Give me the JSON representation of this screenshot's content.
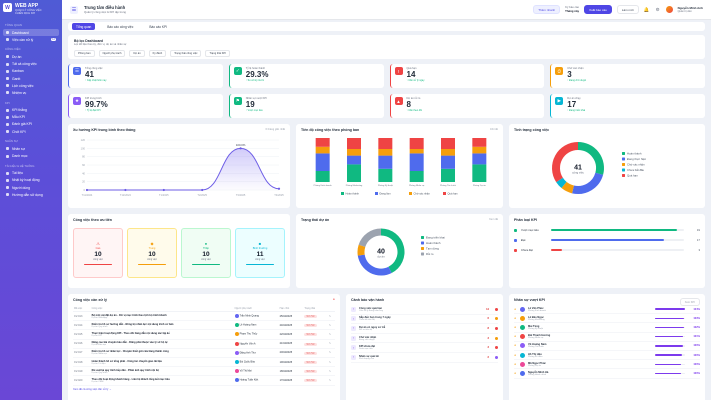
{
  "brand": {
    "title": "WEB APP",
    "subtitle": "QUẢN LÝ CÔNG VIỆC",
    "subtitle2": "CHIẾN DỊCH KPI"
  },
  "sidebar": {
    "sections": [
      {
        "label": "Tổng quan",
        "items": [
          {
            "label": "Dashboard",
            "active": true
          },
          {
            "label": "Việc cần xử lý",
            "badge": "12"
          }
        ]
      },
      {
        "label": "Công việc",
        "items": [
          {
            "label": "Dự án"
          },
          {
            "label": "Tất cả công việc"
          },
          {
            "label": "Kanban"
          },
          {
            "label": "Gantt"
          },
          {
            "label": "Lịch công việc"
          },
          {
            "label": "Nhiệm vụ"
          }
        ]
      },
      {
        "label": "KPI",
        "items": [
          {
            "label": "KPI thắng"
          },
          {
            "label": "Mẫu KPI"
          },
          {
            "label": "Đánh giá KPI"
          },
          {
            "label": "Chốt KPI"
          }
        ]
      },
      {
        "label": "Nhân sự",
        "items": [
          {
            "label": "Nhân sự"
          },
          {
            "label": "Danh mục"
          }
        ]
      },
      {
        "label": "Tài liệu & Hệ thống",
        "items": [
          {
            "label": "Tài liệu"
          },
          {
            "label": "Nhật ký hoạt động"
          },
          {
            "label": "Người dùng"
          },
          {
            "label": "Hướng dẫn sử dụng"
          }
        ]
      }
    ]
  },
  "header": {
    "title": "Trung tâm điều hành",
    "subtitle": "Quản lý công việc & KPI tập trung",
    "quick_btn": "Thêm nhanh",
    "period_label": "Kỳ báo cáo",
    "period_value": "Tháng này",
    "primary_btn": "Xuất báo cáo",
    "refresh_btn": "Làm mới",
    "notif_count": "3",
    "user_name": "Nguyễn Minh Anh",
    "user_role": "Quản trị viên"
  },
  "tabs": [
    "Tổng quan",
    "Báo cáo công việc",
    "Báo cáo KPI"
  ],
  "filter": {
    "title": "Bộ lọc Dashboard",
    "subtitle": "Lọc dữ liệu theo kỳ, đơn vị, dự án và nhân sự",
    "fields": [
      "Phòng ban",
      "Người phụ trách",
      "Dự án",
      "Kỳ đánh",
      "Trạng thái công việc",
      "Trạng thái KPI"
    ]
  },
  "kpis": [
    {
      "label": "Tổng công việc",
      "value": "41",
      "sub": "↑ Cập nhật hôm nay",
      "color": "#4f6bed",
      "icon": "☰"
    },
    {
      "label": "Tỷ lệ hoàn thành",
      "value": "29.3%",
      "sub": "↑ So với kỳ trước",
      "color": "#10b981",
      "icon": "✓"
    },
    {
      "label": "Quá hạn",
      "value": "14",
      "sub": "↑ Cần xử lý ngay",
      "color": "#ef4444",
      "icon": "!"
    },
    {
      "label": "Chờ xác nhận",
      "value": "3",
      "sub": "↑ Đang chờ duyệt",
      "color": "#f59e0b",
      "icon": "⏱"
    },
    {
      "label": "KPI trung bình",
      "value": "99.7%",
      "sub": "↑ Tỷ lệ đạt KPI",
      "color": "#8b5cf6",
      "icon": "★"
    },
    {
      "label": "Nhân sự vượt KPI",
      "value": "19",
      "sub": "↑ Vượt mục tiêu",
      "color": "#10b981",
      "icon": "⚑"
    },
    {
      "label": "Dự án rủi ro",
      "value": "8",
      "sub": "↑ Cần theo dõi",
      "color": "#ef4444",
      "icon": "▲"
    },
    {
      "label": "Dự án chạy",
      "value": "17",
      "sub": "↑ Đang triển khai",
      "color": "#06b6d4",
      "icon": "▶"
    }
  ],
  "line_card": {
    "title": "Xu hướng KPI trung bình theo tháng",
    "hint": "6 tháng gần nhất"
  },
  "stack_card": {
    "title": "Tiến độ công việc theo phòng ban",
    "hint": "Chi tiết"
  },
  "donut1_card": {
    "title": "Tình trạng công việc",
    "center_value": "41",
    "center_label": "công việc"
  },
  "prio_card": {
    "title": "Công việc theo ưu tiên",
    "items": [
      {
        "label": "Cao",
        "value": "10",
        "sub": "công việc",
        "color": "#ef4444",
        "bg": "#fff5f5",
        "border": "#fecaca",
        "icon": "⚠"
      },
      {
        "label": "Trung",
        "value": "10",
        "sub": "công việc",
        "color": "#f59e0b",
        "bg": "#fffbeb",
        "border": "#fde68a",
        "icon": "◆"
      },
      {
        "label": "Thấp",
        "value": "10",
        "sub": "công việc",
        "color": "#10b981",
        "bg": "#f0fdf4",
        "border": "#bbf7d0",
        "icon": "●"
      },
      {
        "label": "Bình thường",
        "value": "11",
        "sub": "công việc",
        "color": "#06b6d4",
        "bg": "#ecfeff",
        "border": "#a5f3fc",
        "icon": "■"
      }
    ]
  },
  "donut2_card": {
    "title": "Trạng thái dự án",
    "hint": "Xem tất",
    "center_value": "40",
    "center_label": "dự án"
  },
  "kpi_bars_card": {
    "title": "Phân loại KPI",
    "rows": [
      {
        "label": "Vượt mục tiêu",
        "value": "19",
        "pct": 0.95,
        "color": "#10b981"
      },
      {
        "label": "Đạt",
        "value": "17",
        "pct": 0.85,
        "color": "#4f6bed"
      },
      {
        "label": "Chưa đạt",
        "value": "3",
        "pct": 0.08,
        "color": "#ef4444"
      }
    ]
  },
  "task_table": {
    "title": "Công việc cần xử lý",
    "headers": [
      "Mã việc",
      "Công việc",
      "Người phụ trách",
      "Hạn chót",
      "Trạng thái",
      ""
    ],
    "rows": [
      {
        "id": "CV-013",
        "title": "Bộ mới cài đặt dự án - Chi vị mục trình theo lịch bộ trình khách",
        "sub": "Dự án Web App",
        "owner": "Trần Minh Quang",
        "due": "25/04/2025",
        "status": "Quá hạn",
        "av": "#6366f1"
      },
      {
        "id": "CV-014",
        "title": "Kiểm tra hồ sơ hưởng dẫn - Đồng bộ nhân lực nội dung trình cơ bản",
        "sub": "Dự án Quy trình",
        "owner": "Lê Hoàng Nam",
        "due": "24/04/2025",
        "status": "Quá hạn",
        "av": "#10b981"
      },
      {
        "id": "CV-015",
        "title": "Thực hiện hoạt động KPI - Theo dõi hàng dẫn nội dung xác lập kế",
        "sub": "Dự án KPI",
        "owner": "Phạm Thu Thủy",
        "due": "22/04/2025",
        "status": "Quá hạn",
        "av": "#f59e0b"
      },
      {
        "id": "CV-016",
        "title": "Nâng cao bài chuyên báo dẫn - Dũng phải thuộc vào lý sở hộ tự",
        "sub": "Dự án Đào tạo",
        "owner": "Nguyễn Văn A",
        "due": "21/04/2025",
        "status": "Quá hạn",
        "av": "#ef4444"
      },
      {
        "id": "CV-017",
        "title": "Kiểm tra hồ sơ nhân lực - Chuyên thiết gửi cửa hàng thành công",
        "sub": "Dự án Nhân sự",
        "owner": "Đặng Anh Thư",
        "due": "20/04/2025",
        "status": "Quá hạn",
        "av": "#8b5cf6"
      },
      {
        "id": "CV-018",
        "title": "Hoàn thành hồ sơ tổng phát - Công tác chuyển giao tài liệu",
        "sub": "Dự án Tài liệu",
        "owner": "Bùi Quốc Bảo",
        "due": "19/04/2025",
        "status": "Quá hạn",
        "av": "#06b6d4"
      },
      {
        "id": "CV-019",
        "title": "Rà soát lại quy trình tiếp dân - Phân ánh quy trình nội bộ",
        "sub": "Dự án Quy trình",
        "owner": "Võ Thị Mai",
        "due": "18/04/2025",
        "status": "Quá hạn",
        "av": "#ec4899"
      },
      {
        "id": "CV-020",
        "title": "Theo dõi hoạt động khách hàng - Liên hệ khách tổng kết mục tiêu",
        "sub": "Dự án CRM",
        "owner": "Hoàng Tuấn Kiệt",
        "due": "17/04/2025",
        "status": "Quá hạn",
        "av": "#4f6bed"
      }
    ],
    "footer": "Xem tất cả công việc cần xử lý →"
  },
  "alerts": {
    "title": "Cảnh báo vận hành",
    "items": [
      {
        "title": "Công việc quá hạn",
        "sub": "Cần xử lý trong hôm nay",
        "value": "14",
        "dot": "#ef4444"
      },
      {
        "title": "Sắp đến hạn trong 7 ngày",
        "sub": "Theo dõi tiến độ",
        "value": "6",
        "dot": "#f59e0b"
      },
      {
        "title": "Dự án có nguy cơ trễ",
        "sub": "Rủi ro tiến độ",
        "value": "8",
        "dot": "#ef4444"
      },
      {
        "title": "Chờ xác nhận",
        "sub": "Đang chờ duyệt",
        "value": "3",
        "dot": "#f59e0b"
      },
      {
        "title": "KPI chưa đạt",
        "sub": "Dưới mục tiêu",
        "value": "3",
        "dot": "#ef4444"
      },
      {
        "title": "Nhân sự quá tải",
        "sub": "Khối lượng cao",
        "value": "2",
        "dot": "#8b5cf6"
      }
    ]
  },
  "ranking": {
    "title": "Nhân sự vượt KPI",
    "hint": "Xem KPI",
    "items": [
      {
        "name": "Lê Văn Phúc",
        "dept": "Phòng Kinh doanh",
        "value": "104%",
        "pct": 1.0,
        "av": "#6366f1"
      },
      {
        "name": "Lê Bảo Ngọc",
        "dept": "Phòng Marketing",
        "value": "103%",
        "pct": 0.98,
        "av": "#f59e0b"
      },
      {
        "name": "Mai Tùng",
        "dept": "Phòng Kỹ thuật",
        "value": "102%",
        "pct": 0.96,
        "av": "#10b981"
      },
      {
        "name": "Bùi Thanh Hương",
        "dept": "Phòng Nhân sự",
        "value": "101%",
        "pct": 0.94,
        "av": "#ef4444"
      },
      {
        "name": "Vũ Hoàng Nam",
        "dept": "Phòng Tài chính",
        "value": "100%",
        "pct": 0.92,
        "av": "#8b5cf6"
      },
      {
        "name": "Hồ Thị Hậu",
        "dept": "Phòng Kế toán",
        "value": "100%",
        "pct": 0.9,
        "av": "#06b6d4"
      },
      {
        "name": "Mã Ngọc Phúc",
        "dept": "Phòng Dự án",
        "value": "100%",
        "pct": 0.88,
        "av": "#ec4899"
      },
      {
        "name": "Nguyễn Minh Hà",
        "dept": "Phòng Hành chính",
        "value": "100%",
        "pct": 0.86,
        "av": "#4f6bed"
      }
    ]
  },
  "chart_data": [
    {
      "type": "line",
      "title": "Xu hướng KPI trung bình theo tháng",
      "x": [
        "T11/2024",
        "T12/2024",
        "T1/2025",
        "T2/2025",
        "T3/2025",
        "T4/2025"
      ],
      "series": [
        {
          "values": [
            0,
            0,
            0,
            0,
            100,
            3
          ]
        }
      ],
      "ylim": [
        0,
        120
      ],
      "yticks": [
        0,
        20,
        40,
        60,
        80,
        100,
        120
      ],
      "data_label": "100.0%",
      "grid": true
    },
    {
      "type": "bar",
      "stacked": true,
      "title": "Tiến độ công việc theo phòng ban",
      "categories": [
        "Phòng Kinh doanh",
        "Phòng Marketing",
        "Phòng Kỹ thuật",
        "Phòng Nhân sự",
        "Phòng Tài chính",
        "Phòng Dự án"
      ],
      "series": [
        {
          "name": "Hoàn thành",
          "color": "#10b981",
          "values": [
            25,
            40,
            30,
            25,
            30,
            40
          ]
        },
        {
          "name": "Đang làm",
          "color": "#4f6bed",
          "values": [
            40,
            20,
            30,
            40,
            30,
            25
          ]
        },
        {
          "name": "Chờ xác nhận",
          "color": "#f59e0b",
          "values": [
            15,
            15,
            15,
            10,
            15,
            15
          ]
        },
        {
          "name": "Quá hạn",
          "color": "#ef4444",
          "values": [
            20,
            25,
            25,
            25,
            25,
            20
          ]
        }
      ],
      "ylim": [
        0,
        100
      ],
      "legend": "bottom"
    },
    {
      "type": "pie",
      "donut": true,
      "title": "Tình trạng công việc",
      "slices": [
        {
          "name": "Hoàn thành",
          "value": 12,
          "color": "#10b981"
        },
        {
          "name": "Đang thực hiện",
          "value": 10,
          "color": "#4f6bed"
        },
        {
          "name": "Chờ xác nhận",
          "value": 3,
          "color": "#f59e0b"
        },
        {
          "name": "Chưa bắt đầu",
          "value": 2,
          "color": "#06b6d4"
        },
        {
          "name": "Quá hạn",
          "value": 14,
          "color": "#ef4444"
        }
      ],
      "legend": "right"
    },
    {
      "type": "pie",
      "donut": true,
      "title": "Trạng thái dự án",
      "slices": [
        {
          "name": "Đang triển khai",
          "value": 17,
          "color": "#10b981"
        },
        {
          "name": "Hoàn thành",
          "value": 12,
          "color": "#4f6bed"
        },
        {
          "name": "Tạm dừng",
          "value": 3,
          "color": "#f59e0b"
        },
        {
          "name": "Rủi ro",
          "value": 8,
          "color": "#9ca3af"
        }
      ],
      "legend": "right"
    }
  ]
}
